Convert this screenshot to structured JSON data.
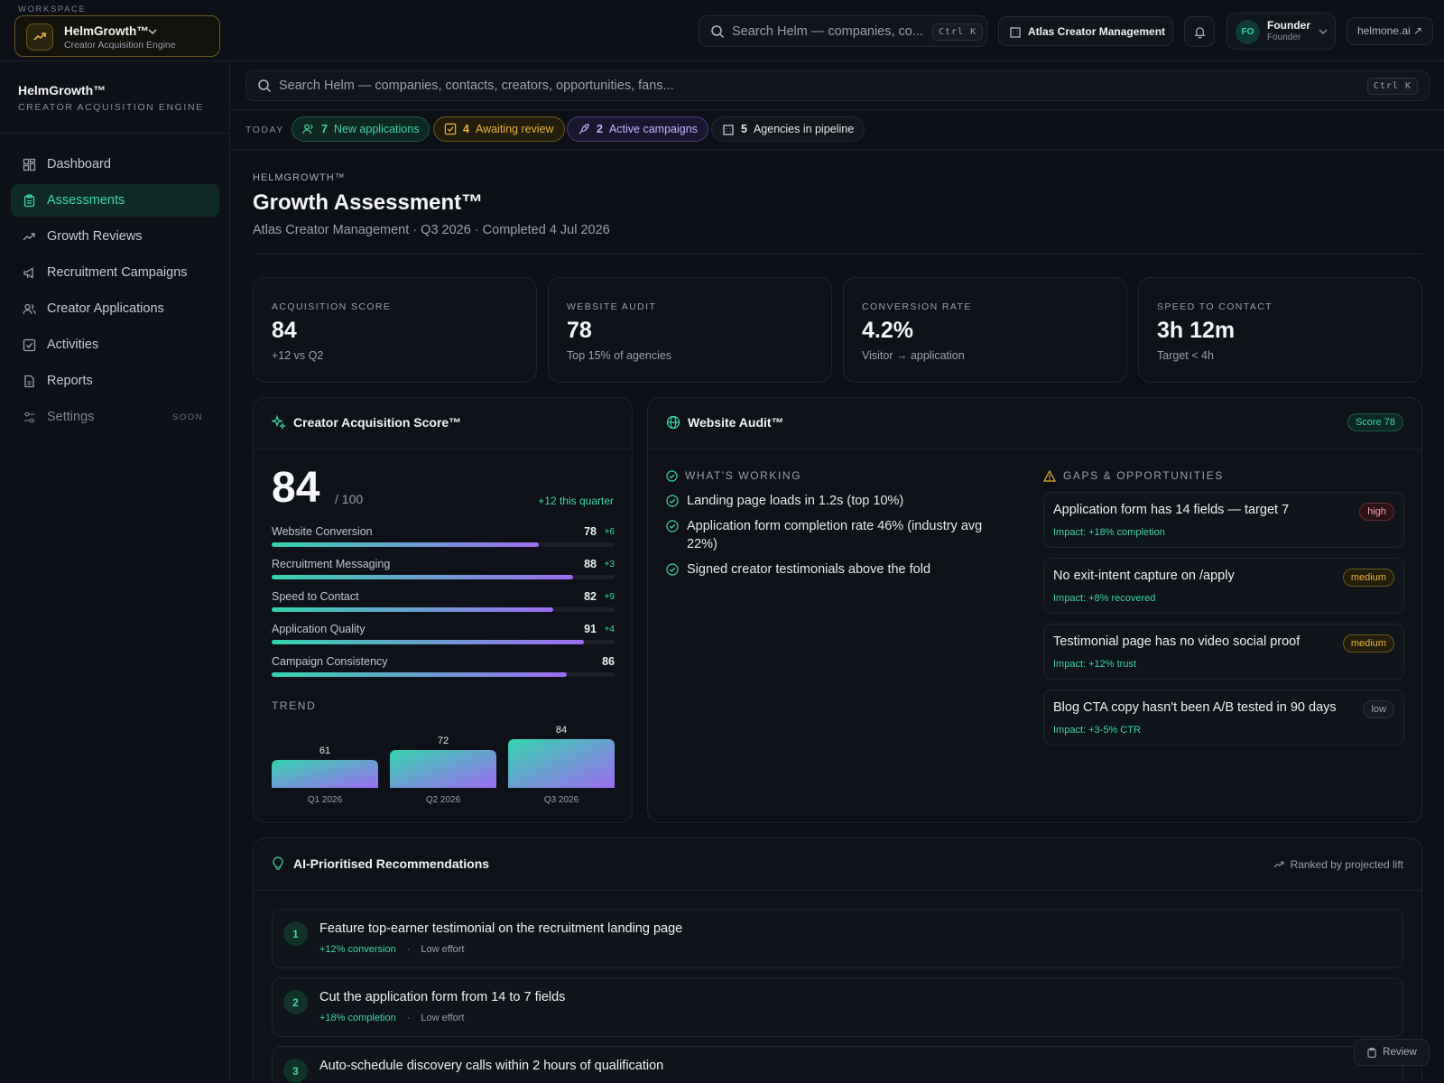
{
  "workspace": {
    "label": "WORKSPACE",
    "name": "HelmGrowth™",
    "subtitle": "Creator Acquisition Engine"
  },
  "topbar": {
    "search_placeholder": "Search Helm — companies, co...",
    "search_shortcut": "Ctrl K",
    "org_name": "Atlas Creator Management",
    "user_initials": "FO",
    "user_name": "Founder",
    "user_role": "Founder",
    "external_link": "helmone.ai ↗"
  },
  "sidebar": {
    "brand": "HelmGrowth™",
    "brand_sub": "CREATOR ACQUISITION ENGINE",
    "items": [
      {
        "label": "Dashboard",
        "icon": "dashboard-icon"
      },
      {
        "label": "Assessments",
        "icon": "clipboard-icon",
        "active": true
      },
      {
        "label": "Growth Reviews",
        "icon": "trend-icon"
      },
      {
        "label": "Recruitment Campaigns",
        "icon": "megaphone-icon"
      },
      {
        "label": "Creator Applications",
        "icon": "users-icon"
      },
      {
        "label": "Activities",
        "icon": "checkbox-icon"
      },
      {
        "label": "Reports",
        "icon": "file-icon"
      },
      {
        "label": "Settings",
        "icon": "sliders-icon",
        "badge": "SOON"
      }
    ]
  },
  "main_search": {
    "placeholder": "Search Helm — companies, contacts, creators, opportunities, fans...",
    "shortcut": "Ctrl K"
  },
  "today": {
    "label": "TODAY",
    "chips": [
      {
        "count": "7",
        "label": "New applications",
        "color": "#3fd5a8"
      },
      {
        "count": "4",
        "label": "Awaiting review",
        "color": "#e7b43a"
      },
      {
        "count": "2",
        "label": "Active campaigns",
        "color": "#a78bfa"
      },
      {
        "count": "5",
        "label": "Agencies in pipeline",
        "color": "#c6cad2"
      }
    ]
  },
  "page": {
    "eyebrow": "HELMGROWTH™",
    "title": "Growth Assessment™",
    "subtitle": "Atlas Creator Management · Q3 2026 · Completed 4 Jul 2026"
  },
  "kpis": [
    {
      "label": "ACQUISITION SCORE",
      "value": "84",
      "note": "+12 vs Q2"
    },
    {
      "label": "WEBSITE AUDIT",
      "value": "78",
      "note": "Top 15% of agencies"
    },
    {
      "label": "CONVERSION RATE",
      "value": "4.2%",
      "note": "Visitor → application"
    },
    {
      "label": "SPEED TO CONTACT",
      "value": "3h 12m",
      "note": "Target < 4h"
    }
  ],
  "score_card": {
    "title": "Creator Acquisition Score™",
    "score": "84",
    "out_of": "/ 100",
    "delta": "+12 this quarter",
    "metrics": [
      {
        "label": "Website Conversion",
        "value": 78,
        "value_text": "78",
        "delta": "+6"
      },
      {
        "label": "Recruitment Messaging",
        "value": 88,
        "value_text": "88",
        "delta": "+3"
      },
      {
        "label": "Speed to Contact",
        "value": 82,
        "value_text": "82",
        "delta": "+9"
      },
      {
        "label": "Application Quality",
        "value": 91,
        "value_text": "91",
        "delta": "+4"
      },
      {
        "label": "Campaign Consistency",
        "value": 86,
        "value_text": "86",
        "delta": ""
      }
    ],
    "trend_label": "TREND"
  },
  "chart_data": {
    "type": "bar",
    "categories": [
      "Q1 2026",
      "Q2 2026",
      "Q3 2026"
    ],
    "values": [
      61,
      72,
      84
    ],
    "title": "TREND",
    "xlabel": "",
    "ylabel": "",
    "ylim": [
      0,
      100
    ]
  },
  "audit_card": {
    "title": "Website Audit™",
    "badge": "Score 78",
    "working_title": "WHAT'S WORKING",
    "working": [
      "Landing page loads in 1.2s (top 10%)",
      "Application form completion rate 46% (industry avg 22%)",
      "Signed creator testimonials above the fold"
    ],
    "gaps_title": "GAPS & OPPORTUNITIES",
    "gaps": [
      {
        "title": "Application form has 14 fields — target 7",
        "impact": "Impact: +18% completion",
        "priority": "high"
      },
      {
        "title": "No exit-intent capture on /apply",
        "impact": "Impact: +8% recovered",
        "priority": "medium"
      },
      {
        "title": "Testimonial page has no video social proof",
        "impact": "Impact: +12% trust",
        "priority": "medium"
      },
      {
        "title": "Blog CTA copy hasn't been A/B tested in 90 days",
        "impact": "Impact: +3-5% CTR",
        "priority": "low"
      }
    ]
  },
  "recs": {
    "title": "AI-Prioritised Recommendations",
    "ranked": "Ranked by projected lift",
    "items": [
      {
        "n": "1",
        "title": "Feature top-earner testimonial on the recruitment landing page",
        "gain": "+12% conversion",
        "effort": "Low effort"
      },
      {
        "n": "2",
        "title": "Cut the application form from 14 to 7 fields",
        "gain": "+18% completion",
        "effort": "Low effort"
      },
      {
        "n": "3",
        "title": "Auto-schedule discovery calls within 2 hours of qualification",
        "gain": "",
        "effort": ""
      }
    ]
  },
  "review_button": "Review"
}
